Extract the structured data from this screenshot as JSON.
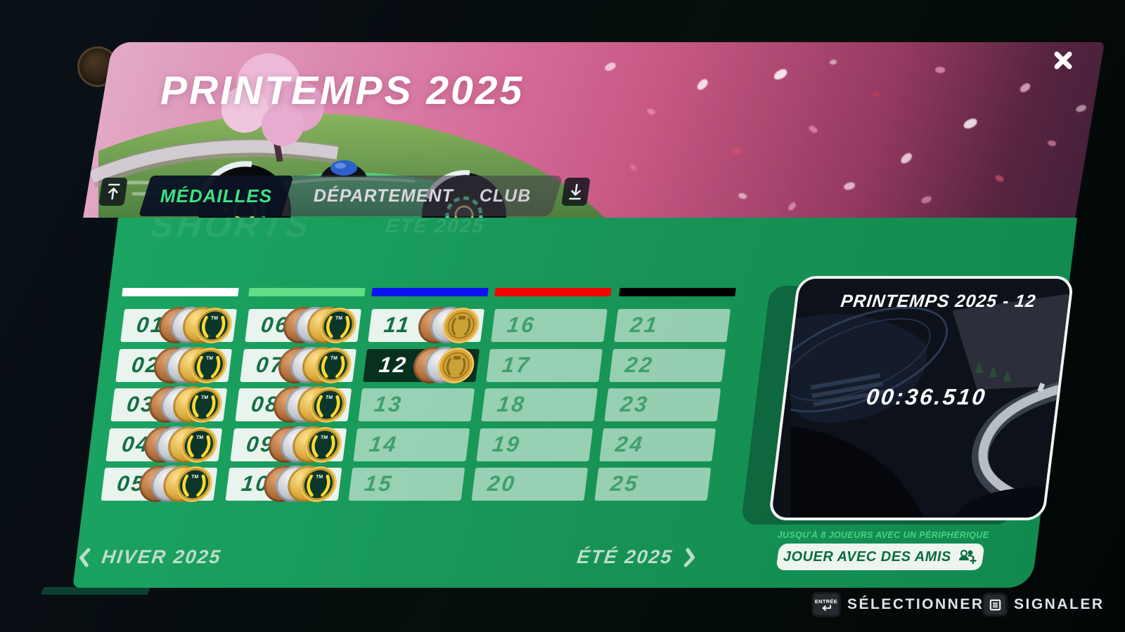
{
  "header": {
    "title": "PRINTEMPS 2025",
    "tabs": [
      {
        "label": "MÉDAILLES",
        "active": true
      },
      {
        "label": "DÉPARTEMENT",
        "active": false
      },
      {
        "label": "CLUB",
        "active": false
      }
    ]
  },
  "watermarks": {
    "left": "SHORTS",
    "right": "ÉTÉ 2025"
  },
  "grid": {
    "column_colors": [
      "#ffffff",
      "#63dd85",
      "#0b13ee",
      "#f20505",
      "#000000"
    ],
    "tracks": [
      {
        "label": "01",
        "state": "author"
      },
      {
        "label": "02",
        "state": "author"
      },
      {
        "label": "03",
        "state": "author"
      },
      {
        "label": "04",
        "state": "author"
      },
      {
        "label": "05",
        "state": "author"
      },
      {
        "label": "06",
        "state": "author"
      },
      {
        "label": "07",
        "state": "author"
      },
      {
        "label": "08",
        "state": "author"
      },
      {
        "label": "09",
        "state": "author"
      },
      {
        "label": "10",
        "state": "author"
      },
      {
        "label": "11",
        "state": "gold"
      },
      {
        "label": "12",
        "state": "selected"
      },
      {
        "label": "13",
        "state": "locked"
      },
      {
        "label": "14",
        "state": "locked"
      },
      {
        "label": "15",
        "state": "locked"
      },
      {
        "label": "16",
        "state": "locked"
      },
      {
        "label": "17",
        "state": "locked"
      },
      {
        "label": "18",
        "state": "locked"
      },
      {
        "label": "19",
        "state": "locked"
      },
      {
        "label": "20",
        "state": "locked"
      },
      {
        "label": "21",
        "state": "locked"
      },
      {
        "label": "22",
        "state": "locked"
      },
      {
        "label": "23",
        "state": "locked"
      },
      {
        "label": "24",
        "state": "locked"
      },
      {
        "label": "25",
        "state": "locked"
      }
    ]
  },
  "preview": {
    "title": "PRINTEMPS 2025 - 12",
    "time": "00:36.510"
  },
  "season_nav": {
    "prev": "HIVER 2025",
    "next": "ÉTÉ 2025"
  },
  "friends": {
    "note": "JUSQU'À 8 JOUEURS AVEC UN PÉRIPHÉRIQUE",
    "button": "JOUER AVEC DES AMIS"
  },
  "footer": {
    "enter_key": "ENTRÉE",
    "select": "SÉLECTIONNER",
    "report": "SIGNALER"
  },
  "colors": {
    "panel_green": "#179355",
    "selected_cell": "#07301f",
    "tab_active_text": "#3ee283",
    "note_green": "#44d586"
  }
}
